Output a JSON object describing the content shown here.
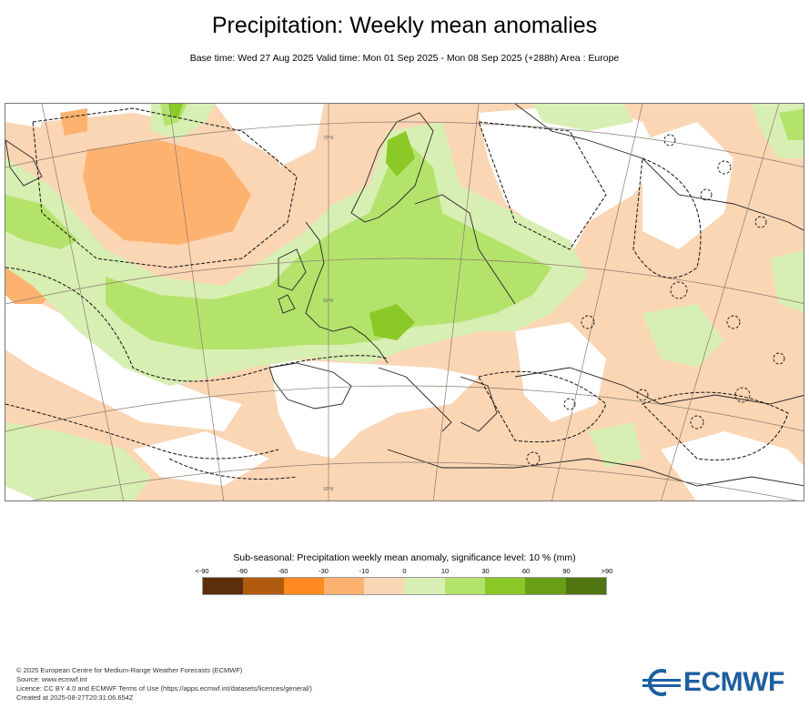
{
  "header": {
    "title": "Precipitation: Weekly mean anomalies",
    "subtitle": "Base time: Wed 27 Aug 2025 Valid time: Mon 01 Sep 2025 - Mon 08 Sep 2025 (+288h) Area : Europe"
  },
  "legend": {
    "title": "Sub-seasonal: Precipitation weekly mean anomaly, significance level: 10 % (mm)",
    "labels": [
      "<-90",
      "-90",
      "-60",
      "-30",
      "-10",
      "0",
      "10",
      "30",
      "60",
      "90",
      ">90"
    ],
    "colors": [
      "#5c2e0b",
      "#b05a10",
      "#ff8a1f",
      "#fdb36f",
      "#fbd6b4",
      "#ffffff",
      "#d8efb3",
      "#b4e36c",
      "#8ac926",
      "#6a9e17",
      "#4f7410"
    ]
  },
  "footer": {
    "line1": "© 2025 European Centre for Medium-Range Weather Forecasts (ECMWF)",
    "line2": "Source: www.ecmwf.int",
    "line3": "Licence: CC BY 4.0 and ECMWF Terms of Use (https://apps.ecmwf.int/datasets/licences/general/)",
    "line4": "Created at 2025-08-27T20:31:06.654Z"
  },
  "logo": {
    "text": "ECMWF",
    "color": "#1d5fa1",
    "icon": "ecmwf-logo-icon"
  }
}
